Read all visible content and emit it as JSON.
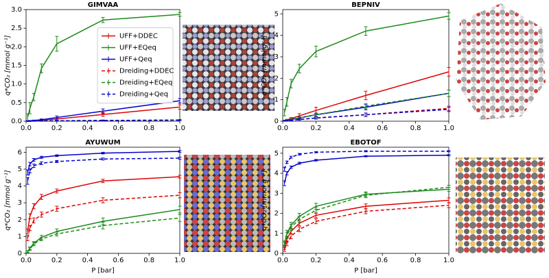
{
  "chart_data": [
    {
      "type": "line",
      "title": "GIMVAA",
      "ylabel": "q*CO₂ [mmol g⁻¹]",
      "legend": "center right",
      "x": [
        0.01,
        0.025,
        0.05,
        0.1,
        0.2,
        0.5,
        1.0
      ],
      "xlim": [
        0,
        1.0
      ],
      "xticks": [
        {
          "value": 0,
          "label": "0.0"
        },
        0.2,
        0.4,
        0.6,
        0.8,
        {
          "value": 1,
          "label": "1.0"
        }
      ],
      "ylim": [
        0,
        3.0
      ],
      "yticks": [
        {
          "value": 0,
          "label": "0.0"
        },
        0.5,
        {
          "value": 1,
          "label": "1.0"
        },
        1.5,
        {
          "value": 2,
          "label": "2.0"
        },
        2.5,
        {
          "value": 3,
          "label": "3.0"
        }
      ],
      "series": [
        {
          "name": "UFF+DDEC",
          "color": "#dd0000",
          "dashed": false,
          "values": [
            0.003,
            0.007,
            0.015,
            0.03,
            0.06,
            0.18,
            0.38
          ],
          "errors": [
            0.01,
            0.01,
            0.01,
            0.02,
            0.03,
            0.05,
            0.06
          ]
        },
        {
          "name": "UFF+EQeq",
          "color": "#1a8a1a",
          "dashed": false,
          "values": [
            0.1,
            0.35,
            0.65,
            1.42,
            2.08,
            2.72,
            2.87
          ],
          "errors": [
            0.1,
            0.15,
            0.1,
            0.12,
            0.2,
            0.07,
            0.05
          ]
        },
        {
          "name": "UFF+Qeq",
          "color": "#0000cc",
          "dashed": false,
          "values": [
            0.005,
            0.01,
            0.02,
            0.04,
            0.1,
            0.27,
            0.55
          ],
          "errors": [
            0.01,
            0.01,
            0.01,
            0.02,
            0.04,
            0.06,
            0.06
          ]
        },
        {
          "name": "Dreiding+DDEC",
          "color": "#dd0000",
          "dashed": true,
          "values": [
            0.001,
            0.002,
            0.004,
            0.008,
            0.012,
            0.02,
            0.03
          ],
          "errors": [
            0.005,
            0.005,
            0.005,
            0.005,
            0.01,
            0.01,
            0.01
          ]
        },
        {
          "name": "Dreiding+EQeq",
          "color": "#1a8a1a",
          "dashed": true,
          "values": [
            0.001,
            0.002,
            0.004,
            0.008,
            0.012,
            0.02,
            0.03
          ],
          "errors": [
            0.005,
            0.005,
            0.005,
            0.005,
            0.01,
            0.01,
            0.01
          ]
        },
        {
          "name": "Dreiding+Qeq",
          "color": "#0000cc",
          "dashed": true,
          "values": [
            0.001,
            0.002,
            0.004,
            0.007,
            0.01,
            0.02,
            0.03
          ],
          "errors": [
            0.005,
            0.005,
            0.005,
            0.005,
            0.01,
            0.01,
            0.01
          ]
        }
      ]
    },
    {
      "type": "line",
      "title": "BEPNIV",
      "ylabel": "q*CO₂ [mmol g⁻¹]",
      "x": [
        0.01,
        0.025,
        0.05,
        0.1,
        0.2,
        0.5,
        1.0
      ],
      "xlim": [
        0,
        1.0
      ],
      "xticks": [
        {
          "value": 0,
          "label": "0.0"
        },
        0.2,
        0.4,
        0.6,
        0.8,
        {
          "value": 1,
          "label": "1.0"
        }
      ],
      "ylim": [
        0,
        5.2
      ],
      "yticks": [
        0,
        1,
        2,
        3,
        4,
        5
      ],
      "series": [
        {
          "color": "#dd0000",
          "dashed": false,
          "values": [
            0.03,
            0.06,
            0.12,
            0.25,
            0.5,
            1.2,
            2.3
          ],
          "errors": [
            0.02,
            0.03,
            0.05,
            0.1,
            0.15,
            0.2,
            0.2
          ]
        },
        {
          "color": "#1a8a1a",
          "dashed": false,
          "values": [
            0.4,
            0.9,
            1.75,
            2.45,
            3.25,
            4.2,
            4.9
          ],
          "errors": [
            0.15,
            0.2,
            0.2,
            0.2,
            0.25,
            0.2,
            0.15
          ]
        },
        {
          "color": "#0000cc",
          "dashed": false,
          "values": [
            0.02,
            0.04,
            0.08,
            0.15,
            0.3,
            0.65,
            1.3
          ],
          "errors": [
            0.02,
            0.03,
            0.04,
            0.05,
            0.08,
            0.12,
            0.15
          ]
        },
        {
          "color": "#dd0000",
          "dashed": true,
          "values": [
            0.01,
            0.02,
            0.04,
            0.08,
            0.15,
            0.3,
            0.6
          ],
          "errors": [
            0.01,
            0.02,
            0.02,
            0.03,
            0.05,
            0.08,
            0.1
          ]
        },
        {
          "color": "#1a8a1a",
          "dashed": true,
          "values": [
            0.02,
            0.04,
            0.08,
            0.15,
            0.3,
            0.7,
            1.3
          ],
          "errors": [
            0.02,
            0.03,
            0.04,
            0.05,
            0.08,
            0.12,
            0.15
          ]
        },
        {
          "color": "#0000cc",
          "dashed": true,
          "values": [
            0.01,
            0.02,
            0.04,
            0.08,
            0.15,
            0.3,
            0.55
          ],
          "errors": [
            0.01,
            0.02,
            0.02,
            0.03,
            0.05,
            0.08,
            0.1
          ]
        }
      ]
    },
    {
      "type": "line",
      "title": "AYUWUM",
      "ylabel": "q*CO₂ [mmol g⁻¹]",
      "xlabel": "P [bar]",
      "x": [
        0.01,
        0.025,
        0.05,
        0.1,
        0.2,
        0.5,
        1.0
      ],
      "xlim": [
        0,
        1.0
      ],
      "xticks": [
        {
          "value": 0,
          "label": "0.0"
        },
        0.2,
        0.4,
        0.6,
        0.8,
        {
          "value": 1,
          "label": "1.0"
        }
      ],
      "ylim": [
        0,
        6.3
      ],
      "yticks": [
        0,
        1,
        2,
        3,
        4,
        5,
        6
      ],
      "series": [
        {
          "color": "#dd0000",
          "dashed": false,
          "values": [
            1.3,
            2.2,
            2.8,
            3.35,
            3.7,
            4.3,
            4.55
          ],
          "errors": [
            0.15,
            0.15,
            0.15,
            0.15,
            0.12,
            0.1,
            0.08
          ]
        },
        {
          "color": "#1a8a1a",
          "dashed": false,
          "values": [
            0.1,
            0.3,
            0.6,
            0.95,
            1.3,
            1.9,
            2.6
          ],
          "errors": [
            0.05,
            0.08,
            0.1,
            0.12,
            0.15,
            0.2,
            0.2
          ]
        },
        {
          "color": "#0000cc",
          "dashed": false,
          "values": [
            4.8,
            5.3,
            5.55,
            5.7,
            5.8,
            5.95,
            6.05
          ],
          "errors": [
            0.15,
            0.1,
            0.08,
            0.06,
            0.05,
            0.05,
            0.05
          ]
        },
        {
          "color": "#dd0000",
          "dashed": true,
          "values": [
            0.9,
            1.5,
            1.95,
            2.3,
            2.65,
            3.15,
            3.45
          ],
          "errors": [
            0.15,
            0.15,
            0.15,
            0.15,
            0.15,
            0.15,
            0.15
          ]
        },
        {
          "color": "#1a8a1a",
          "dashed": true,
          "values": [
            0.1,
            0.25,
            0.55,
            0.85,
            1.15,
            1.65,
            2.1
          ],
          "errors": [
            0.05,
            0.08,
            0.1,
            0.1,
            0.12,
            0.2,
            0.2
          ]
        },
        {
          "color": "#0000cc",
          "dashed": true,
          "values": [
            4.3,
            4.9,
            5.2,
            5.35,
            5.45,
            5.6,
            5.65
          ],
          "errors": [
            0.2,
            0.12,
            0.1,
            0.08,
            0.06,
            0.06,
            0.06
          ]
        }
      ]
    },
    {
      "type": "line",
      "title": "EBOTOF",
      "ylabel": "q*CO₂ [mmol g⁻¹]",
      "xlabel": "P [bar]",
      "x": [
        0.01,
        0.025,
        0.05,
        0.1,
        0.2,
        0.5,
        1.0
      ],
      "xlim": [
        0,
        1.0
      ],
      "xticks": [
        {
          "value": 0,
          "label": "0.0"
        },
        0.2,
        0.4,
        0.6,
        0.8,
        {
          "value": 1,
          "label": "1.0"
        }
      ],
      "ylim": [
        0,
        5.3
      ],
      "yticks": [
        0,
        1,
        2,
        3,
        4,
        5
      ],
      "series": [
        {
          "color": "#dd0000",
          "dashed": false,
          "values": [
            0.3,
            0.7,
            1.1,
            1.5,
            1.9,
            2.35,
            2.65
          ],
          "errors": [
            0.1,
            0.12,
            0.12,
            0.12,
            0.12,
            0.12,
            0.12
          ]
        },
        {
          "color": "#1a8a1a",
          "dashed": false,
          "values": [
            0.5,
            1.0,
            1.4,
            1.85,
            2.35,
            2.95,
            3.2
          ],
          "errors": [
            0.12,
            0.15,
            0.15,
            0.15,
            0.15,
            0.12,
            0.1
          ]
        },
        {
          "color": "#0000cc",
          "dashed": false,
          "values": [
            3.5,
            4.0,
            4.3,
            4.5,
            4.65,
            4.85,
            4.9
          ],
          "errors": [
            0.12,
            0.08,
            0.06,
            0.05,
            0.04,
            0.03,
            0.03
          ]
        },
        {
          "color": "#dd0000",
          "dashed": true,
          "values": [
            0.2,
            0.5,
            0.85,
            1.2,
            1.6,
            2.1,
            2.4
          ],
          "errors": [
            0.1,
            0.12,
            0.12,
            0.12,
            0.12,
            0.12,
            0.12
          ]
        },
        {
          "color": "#1a8a1a",
          "dashed": true,
          "values": [
            0.45,
            0.9,
            1.3,
            1.7,
            2.15,
            2.9,
            3.3
          ],
          "errors": [
            0.12,
            0.15,
            0.15,
            0.15,
            0.15,
            0.12,
            0.1
          ]
        },
        {
          "color": "#0000cc",
          "dashed": true,
          "values": [
            4.2,
            4.55,
            4.8,
            4.95,
            5.05,
            5.1,
            5.1
          ],
          "errors": [
            0.1,
            0.06,
            0.05,
            0.04,
            0.03,
            0.03,
            0.03
          ]
        }
      ]
    }
  ]
}
